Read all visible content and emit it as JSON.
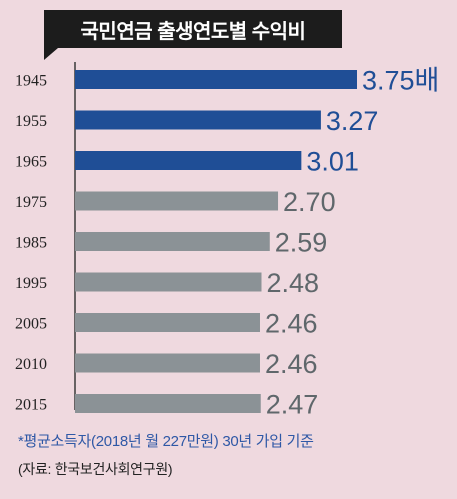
{
  "chart_data": {
    "type": "bar",
    "orientation": "horizontal",
    "title": "국민연금 출생연도별 수익비",
    "categories": [
      "1945",
      "1955",
      "1965",
      "1975",
      "1985",
      "1995",
      "2005",
      "2010",
      "2015"
    ],
    "values": [
      3.75,
      3.27,
      3.01,
      2.7,
      2.59,
      2.48,
      2.46,
      2.46,
      2.47
    ],
    "value_labels": [
      "3.75배",
      "3.27",
      "3.01",
      "2.70",
      "2.59",
      "2.48",
      "2.46",
      "2.46",
      "2.47"
    ],
    "highlight_count": 3,
    "colors": {
      "highlight": "#1f4e96",
      "normal": "#8b9296",
      "highlight_label": "#1f4e96",
      "normal_label": "#5f676b"
    },
    "xlim": [
      0,
      3.75
    ],
    "grid": false,
    "legend": "none"
  },
  "footnote": "*평균소득자(2018년 월 227만원) 30년 가입 기준",
  "source": "(자료: 한국보건사회연구원)"
}
